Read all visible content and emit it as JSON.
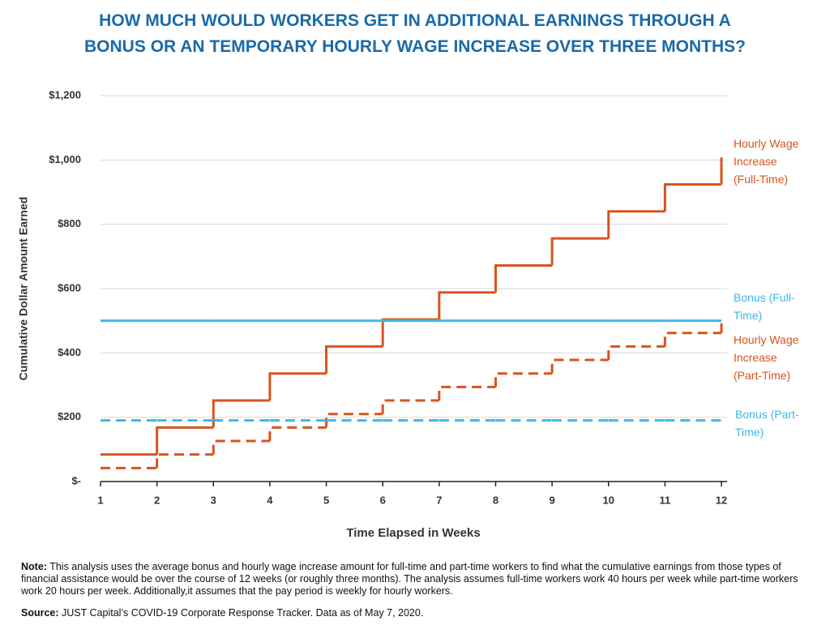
{
  "chart_data": {
    "type": "step",
    "title": "HOW MUCH WOULD WORKERS GET IN ADDITIONAL EARNINGS THROUGH A BONUS OR AN TEMPORARY HOURLY WAGE INCREASE OVER THREE MONTHS?",
    "x_label": "Time Elapsed in Weeks",
    "y_label": "Cumulative Dollar Amount Earned",
    "x": [
      1,
      2,
      3,
      4,
      5,
      6,
      7,
      8,
      9,
      10,
      11,
      12
    ],
    "xlim": [
      1,
      12.1
    ],
    "xticks": [
      1,
      2,
      3,
      4,
      5,
      6,
      7,
      8,
      9,
      10,
      11,
      12
    ],
    "ylim": [
      0,
      1200
    ],
    "yticks": [
      {
        "value": 0,
        "label": "$-"
      },
      {
        "value": 200,
        "label": "$200"
      },
      {
        "value": 400,
        "label": "$400"
      },
      {
        "value": 600,
        "label": "$600"
      },
      {
        "value": 800,
        "label": "$800"
      },
      {
        "value": 1000,
        "label": "$1,000"
      },
      {
        "value": 1200,
        "label": "$1,200"
      }
    ],
    "grid": true,
    "series": [
      {
        "name": "Hourly Wage Increase (Full-Time)",
        "color": "#d9531e",
        "dashed": false,
        "values": [
          84,
          168,
          252,
          336,
          420,
          504,
          588,
          672,
          756,
          840,
          924,
          1008
        ]
      },
      {
        "name": "Bonus (Full-Time)",
        "color": "#41b6e6",
        "dashed": false,
        "values": [
          500,
          500,
          500,
          500,
          500,
          500,
          500,
          500,
          500,
          500,
          500,
          500
        ]
      },
      {
        "name": "Hourly Wage Increase (Part-Time)",
        "color": "#d9531e",
        "dashed": true,
        "values": [
          42,
          84,
          126,
          168,
          210,
          252,
          294,
          336,
          378,
          420,
          462,
          504
        ]
      },
      {
        "name": "Bonus (Part-Time)",
        "color": "#41b6e6",
        "dashed": true,
        "values": [
          190,
          190,
          190,
          190,
          190,
          190,
          190,
          190,
          190,
          190,
          190,
          190
        ]
      }
    ],
    "note_label": "Note:",
    "note": "This analysis uses the average bonus and hourly wage increase amount for full-time and part-time workers to find what the cumulative earnings from those types of financial assistance would be over the course of 12 weeks (or roughly three months). The analysis assumes full-time workers work 40 hours per week while part-time workers work 20 hours per week. Additionally,it assumes that the pay period is weekly for hourly workers.",
    "source_label": "Source:",
    "source": "JUST Capital’s COVID-19 Corporate Response Tracker. Data as of May 7, 2020."
  }
}
